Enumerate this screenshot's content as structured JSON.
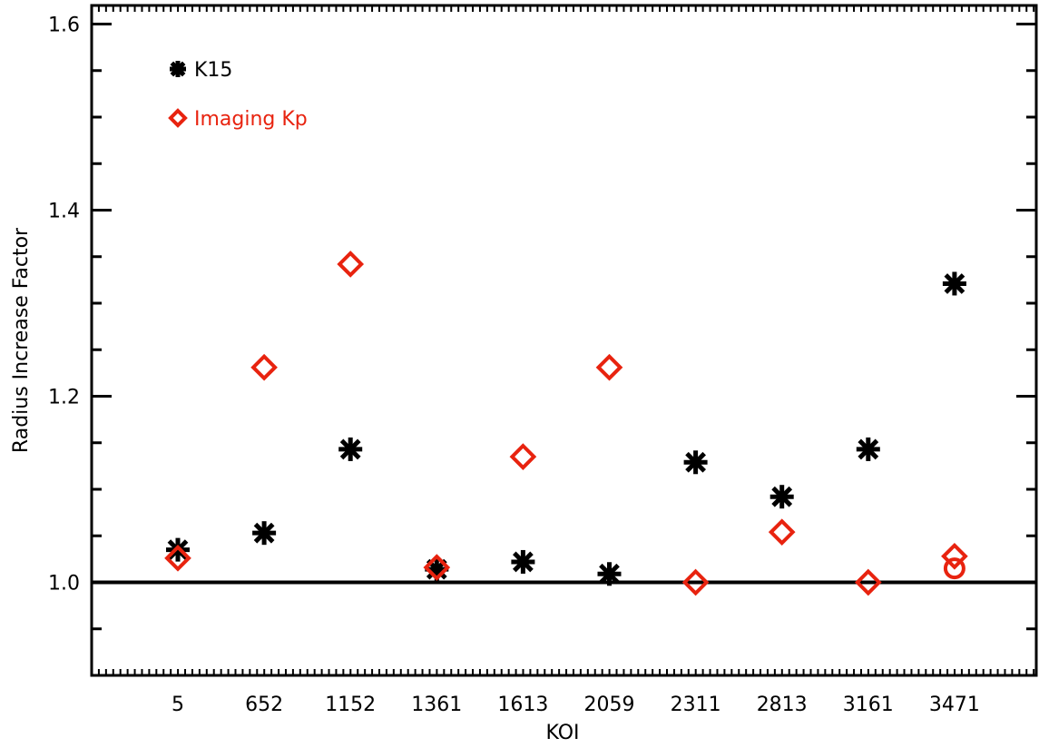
{
  "chart_data": {
    "type": "scatter",
    "categories": [
      "5",
      "652",
      "1152",
      "1361",
      "1613",
      "2059",
      "2311",
      "2813",
      "3161",
      "3471"
    ],
    "xlabel": "KOI",
    "ylabel": "Radius Increase Factor",
    "ylim": [
      0.9,
      1.62
    ],
    "yticks": [
      "1.0",
      "1.2",
      "1.4",
      "1.6"
    ],
    "reference_line": 1.0,
    "legend_position": "top-left",
    "series": [
      {
        "name": "K15",
        "marker": "asterisk",
        "color": "#000000",
        "values": [
          1.035,
          1.053,
          1.143,
          1.014,
          1.022,
          1.009,
          1.129,
          1.092,
          1.143,
          1.321
        ]
      },
      {
        "name": "Imaging Kp",
        "marker": "diamond",
        "color": "#e8230f",
        "values": [
          1.026,
          1.231,
          1.342,
          1.016,
          1.135,
          1.231,
          1.0,
          1.054,
          1.0,
          1.028
        ]
      }
    ],
    "extra_markers": [
      {
        "marker": "circle",
        "color": "#e8230f",
        "category": "3471",
        "value": 1.015
      }
    ]
  }
}
